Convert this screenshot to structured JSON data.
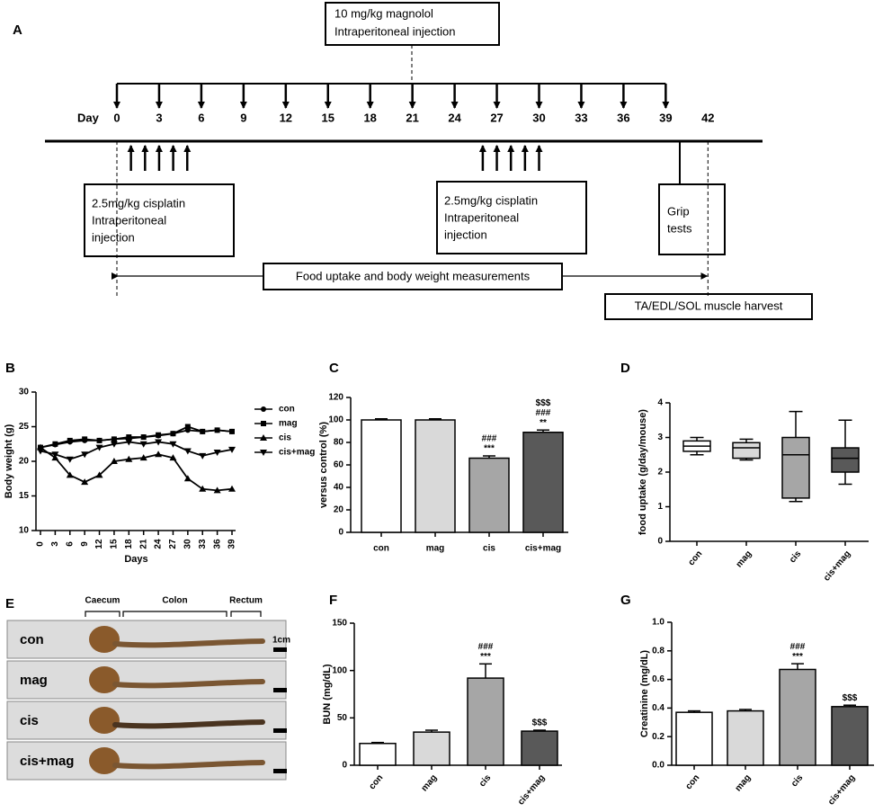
{
  "panel_a": {
    "label": "A",
    "magnolol_box": [
      "10 mg/kg magnolol",
      "Intraperitoneal injection"
    ],
    "day_label": "Day",
    "days": [
      0,
      3,
      6,
      9,
      12,
      15,
      18,
      21,
      24,
      27,
      30,
      33,
      36,
      39,
      42
    ],
    "magnolol_days": [
      0,
      3,
      6,
      9,
      12,
      15,
      18,
      21,
      24,
      27,
      30,
      33,
      36,
      39
    ],
    "cisplatin_days": [
      [
        1,
        2,
        3,
        4,
        5
      ],
      [
        26,
        27,
        28,
        29,
        30
      ]
    ],
    "cisplatin_boxes": [
      [
        "2.5mg/kg cisplatin",
        "Intraperitoneal",
        "injection"
      ],
      [
        "2.5mg/kg cisplatin",
        "Intraperitoneal",
        "injection"
      ]
    ],
    "grip_box": [
      "Grip",
      "tests"
    ],
    "grip_day": 40,
    "measure_text": "Food uptake and body weight measurements",
    "harvest_text": "TA/EDL/SOL muscle harvest"
  },
  "panel_e": {
    "label": "E",
    "segments": [
      "Caecum",
      "Colon",
      "Rectum"
    ],
    "rows": [
      "con",
      "mag",
      "cis",
      "cis+mag"
    ],
    "scale": "1cm"
  },
  "chart_data": [
    {
      "type": "line",
      "label": "B",
      "ylabel": "Body weight (g)",
      "xlabel": "Days",
      "x": [
        0,
        3,
        6,
        9,
        12,
        15,
        18,
        21,
        24,
        27,
        30,
        33,
        36,
        39
      ],
      "xlim": [
        0,
        39
      ],
      "xticks": [
        0,
        3,
        6,
        9,
        12,
        15,
        18,
        21,
        24,
        27,
        30,
        33,
        36,
        39
      ],
      "ylim": [
        10,
        30
      ],
      "yticks": [
        10,
        15,
        20,
        25,
        30
      ],
      "series": [
        {
          "name": "con",
          "marker": "circle",
          "color": "#000000",
          "values": [
            22,
            22.4,
            22.8,
            23,
            23,
            23.2,
            23.3,
            23.5,
            23.7,
            24,
            24.5,
            24.3,
            24.5,
            24.3
          ]
        },
        {
          "name": "mag",
          "marker": "square",
          "color": "#000000",
          "values": [
            22,
            22.5,
            23,
            23.2,
            23,
            23.2,
            23.5,
            23.5,
            23.8,
            24,
            25,
            24.3,
            24.5,
            24.3
          ]
        },
        {
          "name": "cis",
          "marker": "triangle",
          "color": "#000000",
          "values": [
            22,
            20.5,
            18,
            17,
            18,
            20,
            20.3,
            20.5,
            21,
            20.5,
            17.5,
            16,
            15.8,
            16
          ]
        },
        {
          "name": "cis+mag",
          "marker": "triangle-down",
          "color": "#000000",
          "values": [
            21.5,
            21,
            20.3,
            21,
            22,
            22.5,
            22.8,
            22.5,
            22.8,
            22.5,
            21.5,
            20.8,
            21.3,
            21.7
          ]
        }
      ]
    },
    {
      "type": "bar",
      "label": "C",
      "ylabel": "versus control (%)",
      "categories": [
        "con",
        "mag",
        "cis",
        "cis+mag"
      ],
      "values": [
        100,
        100,
        66,
        89
      ],
      "errors": [
        1,
        1,
        2,
        2
      ],
      "colors": [
        "#ffffff",
        "#d9d9d9",
        "#a6a6a6",
        "#595959"
      ],
      "annotations": [
        [],
        [],
        [
          "###",
          "***"
        ],
        [
          "$$$",
          "###",
          "**"
        ]
      ],
      "ylim": [
        0,
        120
      ],
      "yticks": [
        0,
        20,
        40,
        60,
        80,
        100,
        120
      ]
    },
    {
      "type": "box",
      "label": "D",
      "ylabel": "food uptake (g/day/mouse)",
      "categories": [
        "con",
        "mag",
        "cis",
        "cis+mag"
      ],
      "boxes": [
        {
          "min": 2.5,
          "q1": 2.6,
          "median": 2.75,
          "q3": 2.9,
          "max": 3.0
        },
        {
          "min": 2.35,
          "q1": 2.4,
          "median": 2.7,
          "q3": 2.85,
          "max": 2.95
        },
        {
          "min": 1.15,
          "q1": 1.25,
          "median": 2.5,
          "q3": 3.0,
          "max": 3.75
        },
        {
          "min": 1.65,
          "q1": 2.0,
          "median": 2.4,
          "q3": 2.7,
          "max": 3.5
        }
      ],
      "colors": [
        "#ffffff",
        "#d9d9d9",
        "#a6a6a6",
        "#595959"
      ],
      "ylim": [
        0,
        4
      ],
      "yticks": [
        0,
        1,
        2,
        3,
        4
      ]
    },
    {
      "type": "bar",
      "label": "F",
      "ylabel": "BUN  (mg/dL)",
      "categories": [
        "con",
        "mag",
        "cis",
        "cis+mag"
      ],
      "values": [
        23,
        35,
        92,
        36
      ],
      "errors": [
        1,
        2,
        15,
        1
      ],
      "colors": [
        "#ffffff",
        "#d9d9d9",
        "#a6a6a6",
        "#595959"
      ],
      "annotations": [
        [],
        [],
        [
          "###",
          "***"
        ],
        [
          "$$$"
        ]
      ],
      "ylim": [
        0,
        150
      ],
      "yticks": [
        0,
        50,
        100,
        150
      ]
    },
    {
      "type": "bar",
      "label": "G",
      "ylabel": "Creatinine  (mg/dL)",
      "categories": [
        "con",
        "mag",
        "cis",
        "cis+mag"
      ],
      "values": [
        0.37,
        0.38,
        0.67,
        0.41
      ],
      "errors": [
        0.01,
        0.01,
        0.04,
        0.01
      ],
      "colors": [
        "#ffffff",
        "#d9d9d9",
        "#a6a6a6",
        "#595959"
      ],
      "annotations": [
        [],
        [],
        [
          "###",
          "***"
        ],
        [
          "$$$"
        ]
      ],
      "ylim": [
        0,
        1.0
      ],
      "yticks": [
        {
          "value": 0,
          "label": "0.0"
        },
        0.2,
        0.4,
        0.6,
        0.8,
        {
          "value": 1.0,
          "label": "1.0"
        }
      ]
    }
  ]
}
